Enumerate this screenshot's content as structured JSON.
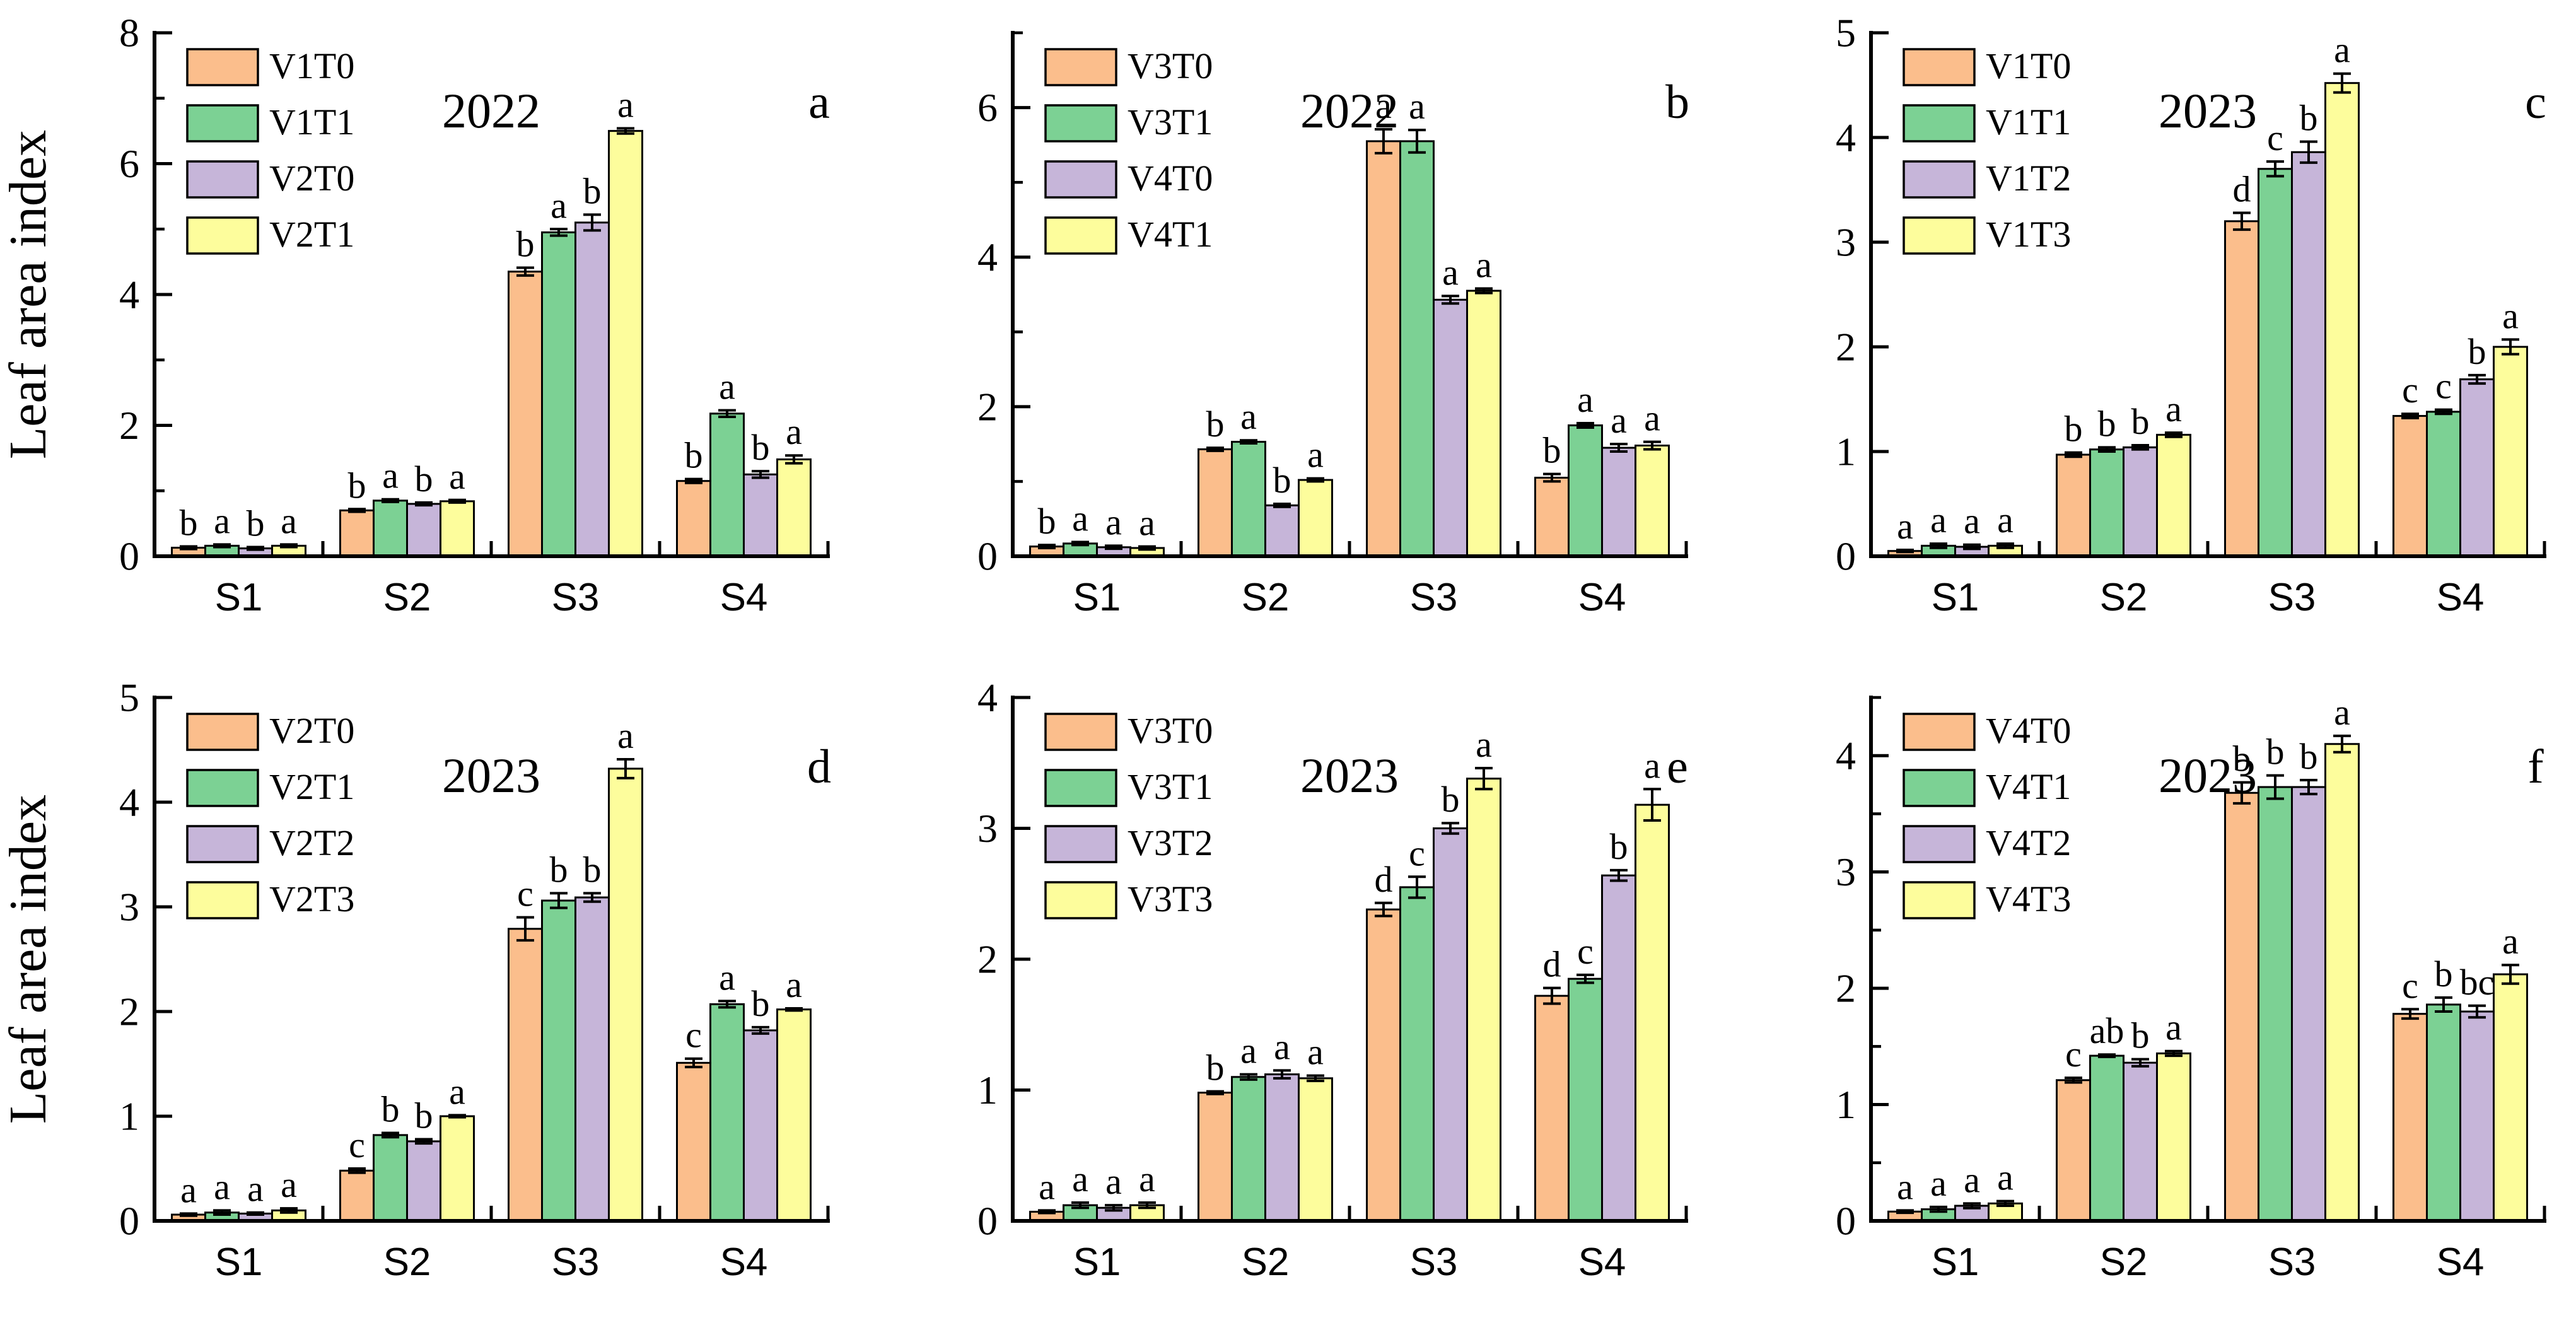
{
  "figure": {
    "background": "#ffffff",
    "ylabel": "Leaf area index",
    "categories": [
      "S1",
      "S2",
      "S3",
      "S4"
    ],
    "bar_colors": [
      "#FBBE8C",
      "#7CD194",
      "#C6B5D9",
      "#FDFD9C"
    ],
    "bar_edge_color": "#000000",
    "axis_color": "#000000",
    "text_color": "#000000"
  },
  "chart_data": [
    {
      "type": "bar",
      "panel_label": "a",
      "title": "2022",
      "show_ylabel": true,
      "categories": [
        "S1",
        "S2",
        "S3",
        "S4"
      ],
      "ylim": [
        0,
        8
      ],
      "y_major_ticks": [
        0,
        2,
        4,
        6,
        8
      ],
      "y_minor_ticks": [
        1,
        3,
        5,
        7
      ],
      "legend_position": "top-left-inside",
      "grid": false,
      "series": [
        {
          "name": "V1T0",
          "values": [
            0.13,
            0.7,
            4.35,
            1.15
          ],
          "errors": [
            0.02,
            0.02,
            0.06,
            0.03
          ],
          "letters": [
            "b",
            "b",
            "b",
            "b"
          ]
        },
        {
          "name": "V1T1",
          "values": [
            0.16,
            0.85,
            4.95,
            2.18
          ],
          "errors": [
            0.02,
            0.02,
            0.05,
            0.05
          ],
          "letters": [
            "a",
            "a",
            "a",
            "a"
          ]
        },
        {
          "name": "V2T0",
          "values": [
            0.12,
            0.8,
            5.1,
            1.25
          ],
          "errors": [
            0.02,
            0.02,
            0.12,
            0.05
          ],
          "letters": [
            "b",
            "b",
            "b",
            "b"
          ]
        },
        {
          "name": "V2T1",
          "values": [
            0.16,
            0.84,
            6.5,
            1.48
          ],
          "errors": [
            0.02,
            0.02,
            0.04,
            0.06
          ],
          "letters": [
            "a",
            "a",
            "a",
            "a"
          ]
        }
      ]
    },
    {
      "type": "bar",
      "panel_label": "b",
      "title": "2022",
      "show_ylabel": false,
      "categories": [
        "S1",
        "S2",
        "S3",
        "S4"
      ],
      "ylim": [
        0,
        7
      ],
      "y_major_ticks": [
        0,
        2,
        4,
        6
      ],
      "y_minor_ticks": [
        1,
        3,
        5,
        7
      ],
      "legend_position": "top-left-inside",
      "grid": false,
      "series": [
        {
          "name": "V3T0",
          "values": [
            0.13,
            1.43,
            5.55,
            1.05
          ],
          "errors": [
            0.02,
            0.02,
            0.16,
            0.05
          ],
          "letters": [
            "b",
            "b",
            "a",
            "b"
          ]
        },
        {
          "name": "V3T1",
          "values": [
            0.17,
            1.53,
            5.55,
            1.75
          ],
          "errors": [
            0.02,
            0.02,
            0.15,
            0.03
          ],
          "letters": [
            "a",
            "a",
            "a",
            "a"
          ]
        },
        {
          "name": "V4T0",
          "values": [
            0.12,
            0.68,
            3.43,
            1.45
          ],
          "errors": [
            0.02,
            0.02,
            0.05,
            0.05
          ],
          "letters": [
            "a",
            "b",
            "a",
            "a"
          ]
        },
        {
          "name": "V4T1",
          "values": [
            0.11,
            1.02,
            3.55,
            1.48
          ],
          "errors": [
            0.02,
            0.02,
            0.03,
            0.05
          ],
          "letters": [
            "a",
            "a",
            "a",
            "a"
          ]
        }
      ]
    },
    {
      "type": "bar",
      "panel_label": "c",
      "title": "2023",
      "show_ylabel": false,
      "categories": [
        "S1",
        "S2",
        "S3",
        "S4"
      ],
      "ylim": [
        0,
        5
      ],
      "y_major_ticks": [
        0,
        1,
        2,
        3,
        4,
        5
      ],
      "y_minor_ticks": [],
      "legend_position": "top-left-inside",
      "grid": false,
      "series": [
        {
          "name": "V1T0",
          "values": [
            0.05,
            0.97,
            3.2,
            1.34
          ],
          "errors": [
            0.01,
            0.02,
            0.08,
            0.02
          ],
          "letters": [
            "a",
            "b",
            "d",
            "c"
          ]
        },
        {
          "name": "V1T1",
          "values": [
            0.1,
            1.02,
            3.7,
            1.38
          ],
          "errors": [
            0.02,
            0.02,
            0.07,
            0.02
          ],
          "letters": [
            "a",
            "b",
            "c",
            "c"
          ]
        },
        {
          "name": "V1T2",
          "values": [
            0.09,
            1.04,
            3.86,
            1.69
          ],
          "errors": [
            0.02,
            0.02,
            0.1,
            0.04
          ],
          "letters": [
            "a",
            "b",
            "b",
            "b"
          ]
        },
        {
          "name": "V1T3",
          "values": [
            0.1,
            1.16,
            4.52,
            2.0
          ],
          "errors": [
            0.02,
            0.02,
            0.09,
            0.07
          ],
          "letters": [
            "a",
            "a",
            "a",
            "a"
          ]
        }
      ]
    },
    {
      "type": "bar",
      "panel_label": "d",
      "title": "2023",
      "show_ylabel": true,
      "categories": [
        "S1",
        "S2",
        "S3",
        "S4"
      ],
      "ylim": [
        0,
        5
      ],
      "y_major_ticks": [
        0,
        1,
        2,
        3,
        4,
        5
      ],
      "y_minor_ticks": [],
      "legend_position": "top-left-inside",
      "grid": false,
      "series": [
        {
          "name": "V2T0",
          "values": [
            0.06,
            0.48,
            2.79,
            1.51
          ],
          "errors": [
            0.01,
            0.02,
            0.11,
            0.04
          ],
          "letters": [
            "a",
            "c",
            "c",
            "c"
          ]
        },
        {
          "name": "V2T1",
          "values": [
            0.08,
            0.82,
            3.06,
            2.07
          ],
          "errors": [
            0.02,
            0.02,
            0.07,
            0.03
          ],
          "letters": [
            "a",
            "b",
            "b",
            "a"
          ]
        },
        {
          "name": "V2T2",
          "values": [
            0.07,
            0.76,
            3.09,
            1.82
          ],
          "errors": [
            0.01,
            0.02,
            0.04,
            0.03
          ],
          "letters": [
            "a",
            "b",
            "b",
            "b"
          ]
        },
        {
          "name": "V2T3",
          "values": [
            0.1,
            1.0,
            4.32,
            2.02
          ],
          "errors": [
            0.02,
            0.01,
            0.09,
            0.01
          ],
          "letters": [
            "a",
            "a",
            "a",
            "a"
          ]
        }
      ]
    },
    {
      "type": "bar",
      "panel_label": "e",
      "title": "2023",
      "show_ylabel": false,
      "categories": [
        "S1",
        "S2",
        "S3",
        "S4"
      ],
      "ylim": [
        0,
        4
      ],
      "y_major_ticks": [
        0,
        1,
        2,
        3,
        4
      ],
      "y_minor_ticks": [],
      "legend_position": "top-left-inside",
      "grid": false,
      "series": [
        {
          "name": "V3T0",
          "values": [
            0.07,
            0.98,
            2.38,
            1.72
          ],
          "errors": [
            0.01,
            0.01,
            0.05,
            0.06
          ],
          "letters": [
            "a",
            "b",
            "d",
            "d"
          ]
        },
        {
          "name": "V3T1",
          "values": [
            0.12,
            1.1,
            2.55,
            1.85
          ],
          "errors": [
            0.02,
            0.02,
            0.08,
            0.03
          ],
          "letters": [
            "a",
            "a",
            "c",
            "c"
          ]
        },
        {
          "name": "V3T2",
          "values": [
            0.1,
            1.12,
            3.0,
            2.64
          ],
          "errors": [
            0.02,
            0.03,
            0.04,
            0.04
          ],
          "letters": [
            "a",
            "a",
            "b",
            "b"
          ]
        },
        {
          "name": "V3T3",
          "values": [
            0.12,
            1.09,
            3.38,
            3.18
          ],
          "errors": [
            0.02,
            0.02,
            0.08,
            0.12
          ],
          "letters": [
            "a",
            "a",
            "a",
            "a"
          ]
        }
      ]
    },
    {
      "type": "bar",
      "panel_label": "f",
      "title": "2023",
      "show_ylabel": false,
      "categories": [
        "S1",
        "S2",
        "S3",
        "S4"
      ],
      "ylim": [
        0,
        4.5
      ],
      "y_major_ticks": [
        0,
        1,
        2,
        3,
        4
      ],
      "y_minor_ticks": [
        0.5,
        1.5,
        2.5,
        3.5,
        4.5
      ],
      "legend_position": "top-left-inside",
      "grid": false,
      "series": [
        {
          "name": "V4T0",
          "values": [
            0.08,
            1.21,
            3.68,
            1.78
          ],
          "errors": [
            0.01,
            0.02,
            0.09,
            0.04
          ],
          "letters": [
            "a",
            "c",
            "b",
            "c"
          ]
        },
        {
          "name": "V4T1",
          "values": [
            0.1,
            1.42,
            3.73,
            1.86
          ],
          "errors": [
            0.02,
            0.01,
            0.1,
            0.06
          ],
          "letters": [
            "a",
            "ab",
            "b",
            "b"
          ]
        },
        {
          "name": "V4T2",
          "values": [
            0.13,
            1.36,
            3.73,
            1.8
          ],
          "errors": [
            0.02,
            0.03,
            0.06,
            0.05
          ],
          "letters": [
            "a",
            "b",
            "b",
            "bc"
          ]
        },
        {
          "name": "V4T3",
          "values": [
            0.15,
            1.44,
            4.1,
            2.12
          ],
          "errors": [
            0.02,
            0.02,
            0.07,
            0.08
          ],
          "letters": [
            "a",
            "a",
            "a",
            "a"
          ]
        }
      ]
    }
  ]
}
